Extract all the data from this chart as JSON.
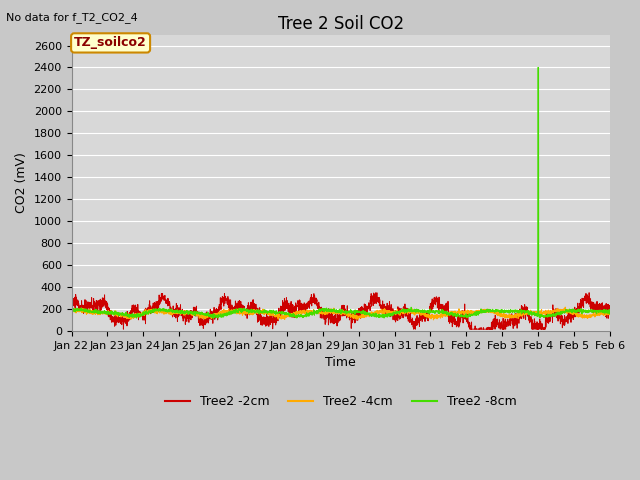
{
  "title": "Tree 2 Soil CO2",
  "no_data_text": "No data for f_T2_CO2_4",
  "ylabel": "CO2 (mV)",
  "xlabel": "Time",
  "annotation_label": "TZ_soilco2",
  "ylim": [
    0,
    2700
  ],
  "yticks": [
    0,
    200,
    400,
    600,
    800,
    1000,
    1200,
    1400,
    1600,
    1800,
    2000,
    2200,
    2400,
    2600
  ],
  "x_labels": [
    "Jan 22",
    "Jan 23",
    "Jan 24",
    "Jan 25",
    "Jan 26",
    "Jan 27",
    "Jan 28",
    "Jan 29",
    "Jan 30",
    "Jan 31",
    "Feb 1",
    "Feb 2",
    "Feb 3",
    "Feb 4",
    "Feb 5",
    "Feb 6"
  ],
  "legend_labels": [
    "Tree2 -2cm",
    "Tree2 -4cm",
    "Tree2 -8cm"
  ],
  "line_colors": [
    "#cc0000",
    "#ffaa00",
    "#44dd00"
  ],
  "fig_bg_color": "#c8c8c8",
  "plot_bg_color": "#d8d8d8",
  "grid_color": "#ffffff",
  "title_fontsize": 12,
  "axis_label_fontsize": 9,
  "tick_fontsize": 8,
  "legend_fontsize": 9,
  "annotation_fontsize": 9,
  "no_data_fontsize": 8
}
